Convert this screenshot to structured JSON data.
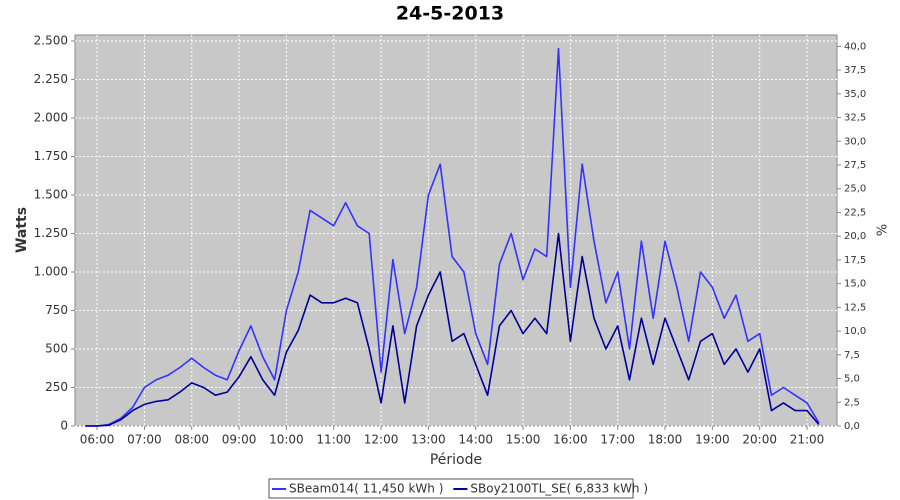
{
  "chart_data": {
    "type": "line",
    "title": "24-5-2013",
    "x_label": "Période",
    "y_label": "Watts",
    "y2_label": "%",
    "x": [
      "05:45",
      "06:00",
      "06:15",
      "06:30",
      "06:45",
      "07:00",
      "07:15",
      "07:30",
      "07:45",
      "08:00",
      "08:15",
      "08:30",
      "08:45",
      "09:00",
      "09:15",
      "09:30",
      "09:45",
      "10:00",
      "10:15",
      "10:30",
      "10:45",
      "11:00",
      "11:15",
      "11:30",
      "11:45",
      "12:00",
      "12:15",
      "12:30",
      "12:45",
      "13:00",
      "13:15",
      "13:30",
      "13:45",
      "14:00",
      "14:15",
      "14:30",
      "14:45",
      "15:00",
      "15:15",
      "15:30",
      "15:45",
      "16:00",
      "16:15",
      "16:30",
      "16:45",
      "17:00",
      "17:15",
      "17:30",
      "17:45",
      "18:00",
      "18:15",
      "18:30",
      "18:45",
      "19:00",
      "19:15",
      "19:30",
      "19:45",
      "20:00",
      "20:15",
      "20:30",
      "20:45",
      "21:00",
      "21:15"
    ],
    "series": [
      {
        "name": "SBeam014( 11,450 kWh )",
        "color": "#3333ff",
        "values": [
          0,
          0,
          10,
          50,
          120,
          250,
          300,
          330,
          380,
          440,
          380,
          330,
          300,
          490,
          650,
          450,
          300,
          750,
          1000,
          1400,
          1350,
          1300,
          1450,
          1300,
          1250,
          350,
          1080,
          600,
          900,
          1500,
          1700,
          1100,
          1000,
          600,
          400,
          1050,
          1250,
          950,
          1150,
          1100,
          2450,
          900,
          1700,
          1200,
          800,
          1000,
          500,
          1200,
          700,
          1200,
          900,
          550,
          1000,
          900,
          700,
          850,
          550,
          600,
          200,
          250,
          200,
          150,
          20
        ]
      },
      {
        "name": "SBoy2100TL_SE( 6,833 kWh )",
        "color": "#000099",
        "values": [
          0,
          0,
          5,
          40,
          100,
          140,
          160,
          170,
          220,
          280,
          250,
          200,
          220,
          320,
          450,
          300,
          200,
          480,
          620,
          850,
          800,
          800,
          830,
          800,
          500,
          150,
          650,
          150,
          650,
          850,
          1000,
          550,
          600,
          400,
          200,
          650,
          750,
          600,
          700,
          600,
          1250,
          550,
          1100,
          700,
          500,
          650,
          300,
          700,
          400,
          700,
          500,
          300,
          550,
          600,
          400,
          500,
          350,
          500,
          100,
          150,
          100,
          100,
          10
        ]
      }
    ],
    "xlim": [
      "05:32",
      "21:38"
    ],
    "xticks": [
      "06:00",
      "07:00",
      "08:00",
      "09:00",
      "10:00",
      "11:00",
      "12:00",
      "13:00",
      "14:00",
      "15:00",
      "16:00",
      "17:00",
      "18:00",
      "19:00",
      "20:00",
      "21:00"
    ],
    "ylim": [
      0,
      2539
    ],
    "yticks": [
      0,
      250,
      500,
      750,
      {
        "value": 1000,
        "label": "1.000"
      },
      {
        "value": 1250,
        "label": "1.250"
      },
      {
        "value": 1500,
        "label": "1.500"
      },
      {
        "value": 1750,
        "label": "1.750"
      },
      {
        "value": 2000,
        "label": "2.000"
      },
      {
        "value": 2250,
        "label": "2.250"
      },
      {
        "value": 2500,
        "label": "2.500"
      }
    ],
    "y2lim": [
      0,
      41.2
    ],
    "y2ticks": [
      {
        "value": 0,
        "label": "0,0"
      },
      {
        "value": 2.5,
        "label": "2,5"
      },
      {
        "value": 5,
        "label": "5,0"
      },
      {
        "value": 7.5,
        "label": "7,5"
      },
      {
        "value": 10,
        "label": "10,0"
      },
      {
        "value": 12.5,
        "label": "12,5"
      },
      {
        "value": 15,
        "label": "15,0"
      },
      {
        "value": 17.5,
        "label": "17,5"
      },
      {
        "value": 20,
        "label": "20,0"
      },
      {
        "value": 22.5,
        "label": "22,5"
      },
      {
        "value": 25,
        "label": "25,0"
      },
      {
        "value": 27.5,
        "label": "27,5"
      },
      {
        "value": 30,
        "label": "30,0"
      },
      {
        "value": 32.5,
        "label": "32,5"
      },
      {
        "value": 35,
        "label": "35,0"
      },
      {
        "value": 37.5,
        "label": "37,5"
      },
      {
        "value": 40,
        "label": "40,0"
      }
    ],
    "grid": true
  }
}
